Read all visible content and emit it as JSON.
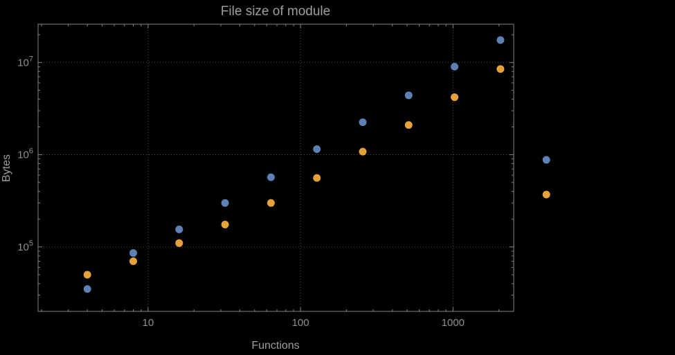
{
  "chart_data": {
    "type": "scatter",
    "title": "File size of module",
    "xlabel": "Functions",
    "ylabel": "Bytes",
    "x_scale": "log",
    "y_scale": "log",
    "xlim": [
      1.9,
      2500
    ],
    "ylim": [
      20000,
      26000000
    ],
    "x_major_ticks": [
      10,
      100,
      1000
    ],
    "y_major_ticks": [
      100000,
      1000000,
      10000000
    ],
    "grid": "dotted-at-major-ticks",
    "legend": "none",
    "frame": true,
    "series": [
      {
        "name": "series-1-blue",
        "color": "#5e81b5",
        "points": [
          [
            4,
            35000
          ],
          [
            8,
            86000
          ],
          [
            16,
            155000
          ],
          [
            32,
            300000
          ],
          [
            64,
            570000
          ],
          [
            128,
            1150000
          ],
          [
            256,
            2250000
          ],
          [
            512,
            4400000
          ],
          [
            1024,
            9000000
          ],
          [
            2048,
            17500000
          ],
          [
            4096,
            880000
          ]
        ]
      },
      {
        "name": "series-2-orange",
        "color": "#e5a23b",
        "points": [
          [
            4,
            50000
          ],
          [
            8,
            70000
          ],
          [
            16,
            110000
          ],
          [
            32,
            175000
          ],
          [
            64,
            300000
          ],
          [
            128,
            560000
          ],
          [
            256,
            1080000
          ],
          [
            512,
            2100000
          ],
          [
            1024,
            4200000
          ],
          [
            2048,
            8500000
          ],
          [
            4096,
            370000
          ]
        ]
      }
    ]
  },
  "colors": {
    "background": "#000000",
    "frame": "#848484",
    "grid": "#545454",
    "label_text": "#9e9e9e",
    "tick_text": "#8f8f8f"
  }
}
